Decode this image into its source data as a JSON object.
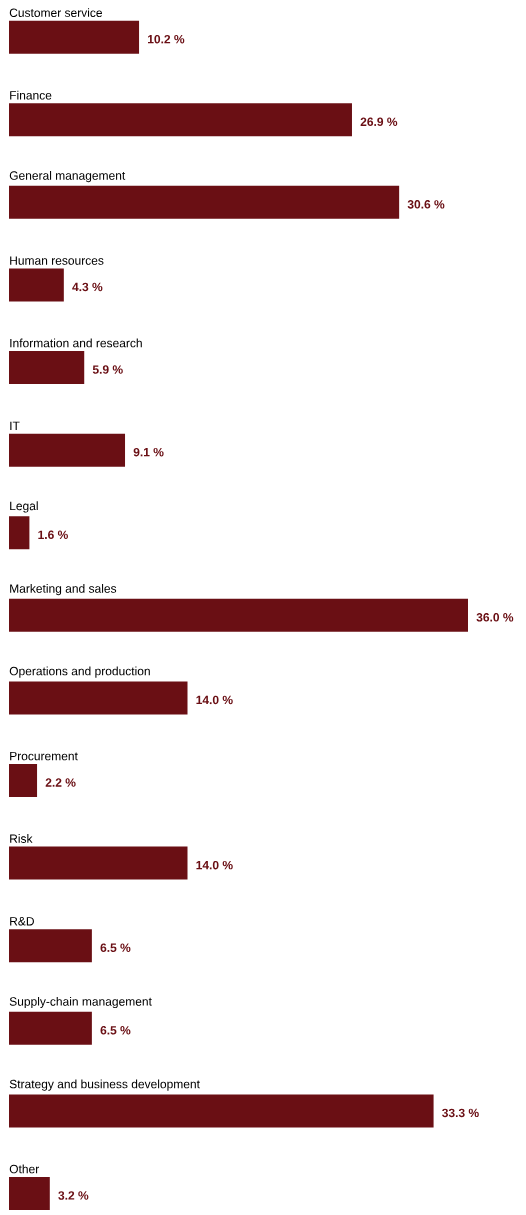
{
  "chart_data": {
    "type": "bar",
    "orientation": "horizontal",
    "color": "#6a0f14",
    "categories": [
      "Customer service",
      "Finance",
      "General management",
      "Human resources",
      "Information and research",
      "IT",
      "Legal",
      "Marketing and sales",
      "Operations and production",
      "Procurement",
      "Risk",
      "R&D",
      "Supply-chain management",
      "Strategy and business development",
      "Other"
    ],
    "values": [
      10.2,
      26.9,
      30.6,
      4.3,
      5.9,
      9.1,
      1.6,
      36.0,
      14.0,
      2.2,
      14.0,
      6.5,
      6.5,
      33.3,
      3.2
    ],
    "value_labels": [
      "10.2 %",
      "26.9 %",
      "30.6 %",
      "4.3 %",
      "5.9 %",
      "9.1 %",
      "1.6 %",
      "36.0 %",
      "14.0 %",
      "2.2 %",
      "14.0 %",
      "6.5 %",
      "6.5 %",
      "33.3 %",
      "3.2 %"
    ]
  }
}
